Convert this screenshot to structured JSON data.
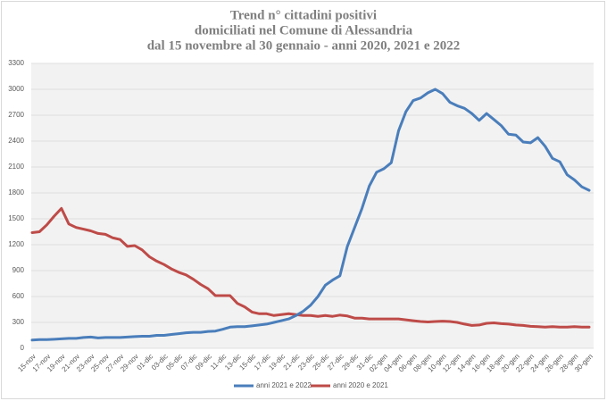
{
  "chart_data": {
    "type": "line",
    "title": [
      "Trend n° cittadini positivi",
      "domiciliati nel Comune di Alessandria",
      "dal 15 novembre al 30 gennaio - anni 2020, 2021 e 2022"
    ],
    "categories": [
      "15-nov",
      null,
      "17-nov",
      null,
      "19-nov",
      null,
      "21-nov",
      null,
      "23-nov",
      null,
      "25-nov",
      null,
      "27-nov",
      null,
      "29-nov",
      null,
      "01-dic",
      null,
      "03-dic",
      null,
      "05-dic",
      null,
      "07-dic",
      null,
      "09-dic",
      null,
      "11-dic",
      null,
      "13-dic",
      null,
      "15-dic",
      null,
      "17-dic",
      null,
      "19-dic",
      null,
      "21-dic",
      null,
      "23-dic",
      null,
      "25-dic",
      null,
      "27-dic",
      null,
      "29-dic",
      null,
      "31-dic",
      null,
      "02-gen",
      null,
      "04-gen",
      null,
      "06-gen",
      null,
      "08-gen",
      null,
      "10-gen",
      null,
      "12-gen",
      null,
      "14-gen",
      null,
      "16-gen",
      null,
      "18-gen",
      null,
      "20-gen",
      null,
      "22-gen",
      null,
      "24-gen",
      null,
      "26-gen",
      null,
      "28-gen",
      null,
      "30-gen"
    ],
    "series": [
      {
        "name": "anni 2021 e 2022",
        "color": "#4a7ebb",
        "values": [
          95,
          100,
          100,
          105,
          110,
          115,
          115,
          125,
          130,
          120,
          125,
          125,
          125,
          130,
          135,
          140,
          140,
          150,
          150,
          160,
          170,
          180,
          185,
          185,
          195,
          200,
          220,
          245,
          250,
          250,
          260,
          270,
          280,
          300,
          320,
          340,
          380,
          430,
          500,
          600,
          730,
          790,
          840,
          1180,
          1400,
          1620,
          1880,
          2040,
          2080,
          2150,
          2520,
          2740,
          2870,
          2900,
          2960,
          3000,
          2950,
          2850,
          2810,
          2780,
          2720,
          2640,
          2720,
          2650,
          2580,
          2480,
          2470,
          2390,
          2380,
          2440,
          2340,
          2200,
          2160,
          2010,
          1950,
          1870,
          1830
        ]
      },
      {
        "name": "anni 2020 e 2021",
        "color": "#be4b48",
        "values": [
          1340,
          1350,
          1430,
          1530,
          1620,
          1440,
          1400,
          1380,
          1360,
          1330,
          1320,
          1280,
          1260,
          1180,
          1190,
          1140,
          1060,
          1010,
          970,
          920,
          880,
          850,
          800,
          740,
          690,
          610,
          610,
          610,
          520,
          480,
          420,
          400,
          400,
          380,
          390,
          400,
          390,
          380,
          380,
          370,
          380,
          370,
          385,
          375,
          350,
          350,
          340,
          340,
          340,
          340,
          340,
          330,
          320,
          310,
          305,
          310,
          315,
          310,
          300,
          280,
          265,
          270,
          290,
          295,
          285,
          280,
          270,
          265,
          255,
          250,
          245,
          250,
          245,
          245,
          250,
          245,
          245
        ]
      }
    ],
    "ylim": [
      0,
      3300
    ],
    "yticks": [
      0,
      300,
      600,
      900,
      1200,
      1500,
      1800,
      2100,
      2400,
      2700,
      3000,
      3300
    ],
    "grid": true
  }
}
